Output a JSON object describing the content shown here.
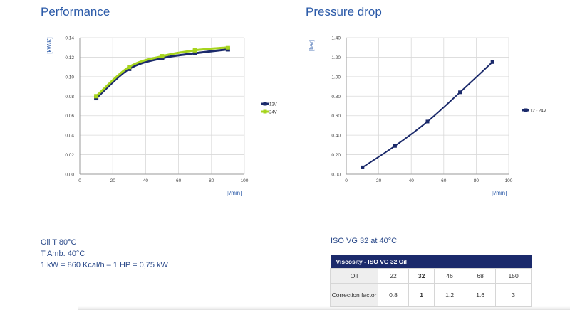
{
  "chart_data": [
    {
      "type": "line",
      "title": "Performance",
      "xlabel": "[l/min]",
      "ylabel": "[kW/K]",
      "x": [
        10,
        30,
        50,
        70,
        90
      ],
      "xlim": [
        0,
        100
      ],
      "ylim": [
        0,
        0.14
      ],
      "xticks": [
        "0",
        "20",
        "40",
        "60",
        "80",
        "100"
      ],
      "yticks": [
        "0.00",
        "0.02",
        "0.04",
        "0.06",
        "0.08",
        "0.10",
        "0.12",
        "0.14"
      ],
      "grid": true,
      "legend_position": "right",
      "series": [
        {
          "name": "12V",
          "color": "#1b2a6b",
          "values": [
            0.078,
            0.108,
            0.119,
            0.124,
            0.128
          ]
        },
        {
          "name": "24V",
          "color": "#a6d41e",
          "values": [
            0.08,
            0.11,
            0.121,
            0.127,
            0.13
          ]
        }
      ]
    },
    {
      "type": "line",
      "title": "Pressure drop",
      "xlabel": "[l/min]",
      "ylabel": "[bar]",
      "x": [
        10,
        30,
        50,
        70,
        90
      ],
      "xlim": [
        0,
        100
      ],
      "ylim": [
        0,
        1.4
      ],
      "xticks": [
        "0",
        "20",
        "40",
        "60",
        "80",
        "100"
      ],
      "yticks": [
        "0.00",
        "0.20",
        "0.40",
        "0.60",
        "0.80",
        "1.00",
        "1.20",
        "1.40"
      ],
      "grid": true,
      "legend_position": "right",
      "series": [
        {
          "name": "12 - 24V",
          "color": "#1b2a6b",
          "values": [
            0.07,
            0.29,
            0.54,
            0.84,
            1.15
          ]
        }
      ]
    }
  ],
  "notes": [
    "Oil T 80°C",
    "T Amb. 40°C",
    "1 kW = 860 Kcal/h – 1 HP = 0,75 kW"
  ],
  "iso_label": "ISO VG 32 at 40°C",
  "viscosity_table": {
    "header": "Viscosity - ISO VG 32 Oil",
    "row_oil_label": "Oil",
    "oil": [
      "22",
      "32",
      "46",
      "68",
      "150"
    ],
    "row_cf_label": "Correction factor",
    "correction": [
      "0.8",
      "1",
      "1.2",
      "1.6",
      "3"
    ]
  }
}
